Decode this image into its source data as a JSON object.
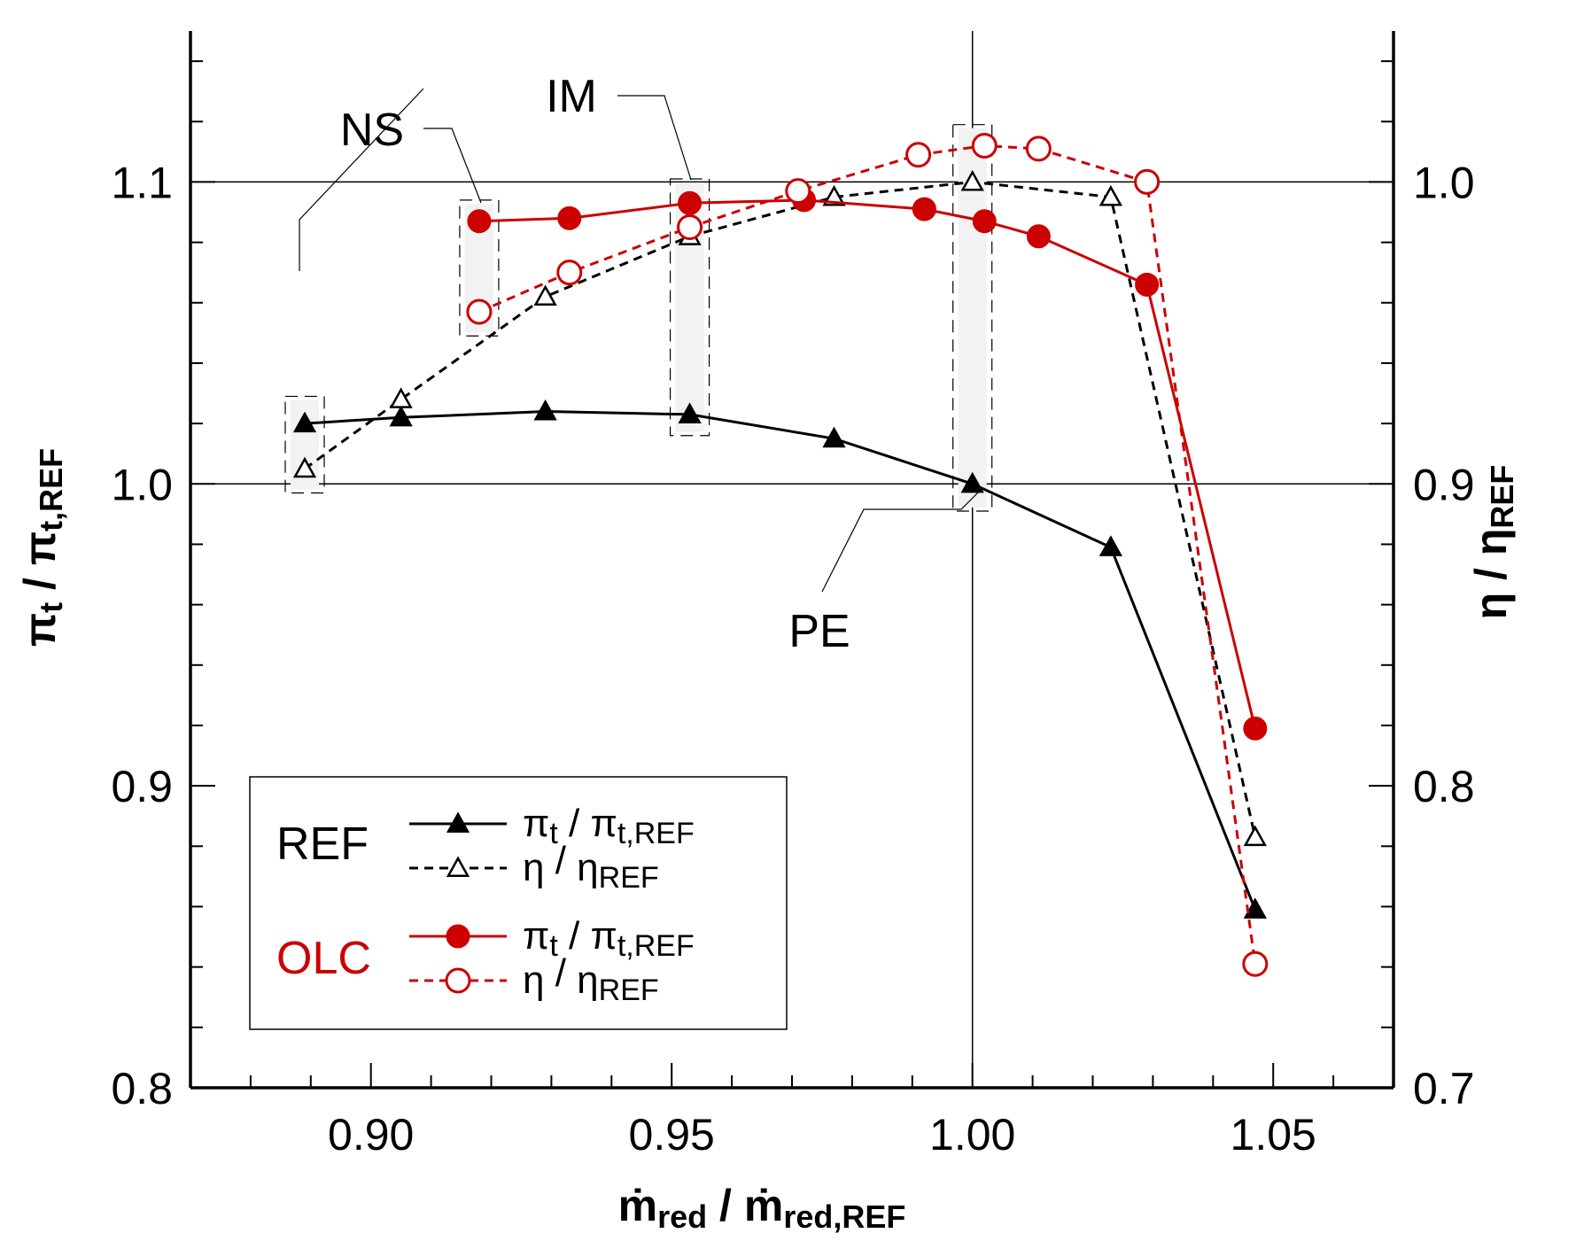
{
  "chart_data": {
    "type": "line",
    "x": {
      "label": "ṁred / ṁred,REF",
      "label_main": "ṁ",
      "label_sub": "red",
      "label_slash": " / ",
      "label_main2": "ṁ",
      "label_sub2": "red,REF",
      "lim": [
        0.87,
        1.07
      ],
      "ticks": [
        0.9,
        0.95,
        1.0,
        1.05
      ],
      "tick_labels": [
        "0.90",
        "0.95",
        "1.00",
        "1.05"
      ],
      "minor_step": 0.01
    },
    "y_left": {
      "label": "πt / πt,REF",
      "label_main": "π",
      "label_sub": "t",
      "label_slash": " / ",
      "label_main2": "π",
      "label_sub2": "t,REF",
      "lim": [
        0.8,
        1.15
      ],
      "ticks": [
        0.8,
        0.9,
        1.0,
        1.1
      ],
      "tick_labels": [
        "0.8",
        "0.9",
        "1.0",
        "1.1"
      ],
      "minor_step": 0.02
    },
    "y_right": {
      "label": "η / ηREF",
      "label_main": "η",
      "label_slash": " / ",
      "label_main2": "η",
      "label_sub2": "REF",
      "lim": [
        0.7,
        1.05
      ],
      "ticks": [
        0.7,
        0.8,
        0.9,
        1.0
      ],
      "tick_labels": [
        "0.7",
        "0.8",
        "0.9",
        "1.0"
      ],
      "minor_step": 0.02
    },
    "reference_lines": {
      "x": [
        1.0
      ],
      "y_left": [
        1.0,
        1.1
      ]
    },
    "series": [
      {
        "name": "REF πt / πt,REF",
        "group": "REF",
        "axis": "left",
        "color": "#000000",
        "dash": "solid",
        "marker": "triangle-filled",
        "x": [
          0.889,
          0.905,
          0.929,
          0.953,
          0.977,
          1.0,
          1.023,
          1.047
        ],
        "y": [
          1.02,
          1.022,
          1.024,
          1.023,
          1.015,
          1.0,
          0.979,
          0.859
        ]
      },
      {
        "name": "REF η / ηREF",
        "group": "REF",
        "axis": "right",
        "color": "#000000",
        "dash": "dashed",
        "marker": "triangle-open",
        "x": [
          0.889,
          0.905,
          0.929,
          0.953,
          0.977,
          1.0,
          1.023,
          1.047
        ],
        "y": [
          0.905,
          0.928,
          0.962,
          0.982,
          0.995,
          1.0,
          0.995,
          0.783
        ]
      },
      {
        "name": "OLC πt / πt,REF",
        "group": "OLC",
        "axis": "left",
        "color": "#cc0000",
        "dash": "solid",
        "marker": "circle-filled",
        "x": [
          0.918,
          0.933,
          0.953,
          0.972,
          0.992,
          1.002,
          1.011,
          1.029,
          1.047
        ],
        "y": [
          1.087,
          1.088,
          1.093,
          1.094,
          1.091,
          1.087,
          1.082,
          1.066,
          0.919
        ]
      },
      {
        "name": "OLC η / ηREF",
        "group": "OLC",
        "axis": "right",
        "color": "#cc0000",
        "dash": "dashed",
        "marker": "circle-open",
        "x": [
          0.918,
          0.933,
          0.953,
          0.971,
          0.991,
          1.002,
          1.011,
          1.029,
          1.047
        ],
        "y": [
          0.957,
          0.97,
          0.985,
          0.997,
          1.009,
          1.012,
          1.011,
          1.0,
          0.741
        ]
      }
    ],
    "annotations": [
      {
        "text": "NS",
        "x": 0.889,
        "y_range": [
          0.997,
          1.029
        ],
        "bracket": [
          0.917,
          0.919
        ],
        "bracket_y": [
          1.049,
          1.094
        ]
      },
      {
        "text": "IM",
        "x": 0.953,
        "y_range": [
          1.016,
          1.101
        ]
      },
      {
        "text": "PE",
        "x": 1.0,
        "y_range": [
          0.991,
          1.119
        ]
      }
    ],
    "legend": {
      "position": "bottom-left",
      "groups": [
        {
          "title": "REF",
          "title_color": "#000000",
          "entries": [
            {
              "main": "π",
              "sub": "t",
              "slash": " / ",
              "main2": "π",
              "sub2": "t,REF",
              "series": 0
            },
            {
              "main": "η",
              "sub": "",
              "slash": " / ",
              "main2": "η",
              "sub2": "REF",
              "series": 1
            }
          ]
        },
        {
          "title": "OLC",
          "title_color": "#cc0000",
          "entries": [
            {
              "main": "π",
              "sub": "t",
              "slash": " / ",
              "main2": "π",
              "sub2": "t,REF",
              "series": 2
            },
            {
              "main": "η",
              "sub": "",
              "slash": " / ",
              "main2": "η",
              "sub2": "REF",
              "series": 3
            }
          ]
        }
      ]
    }
  }
}
